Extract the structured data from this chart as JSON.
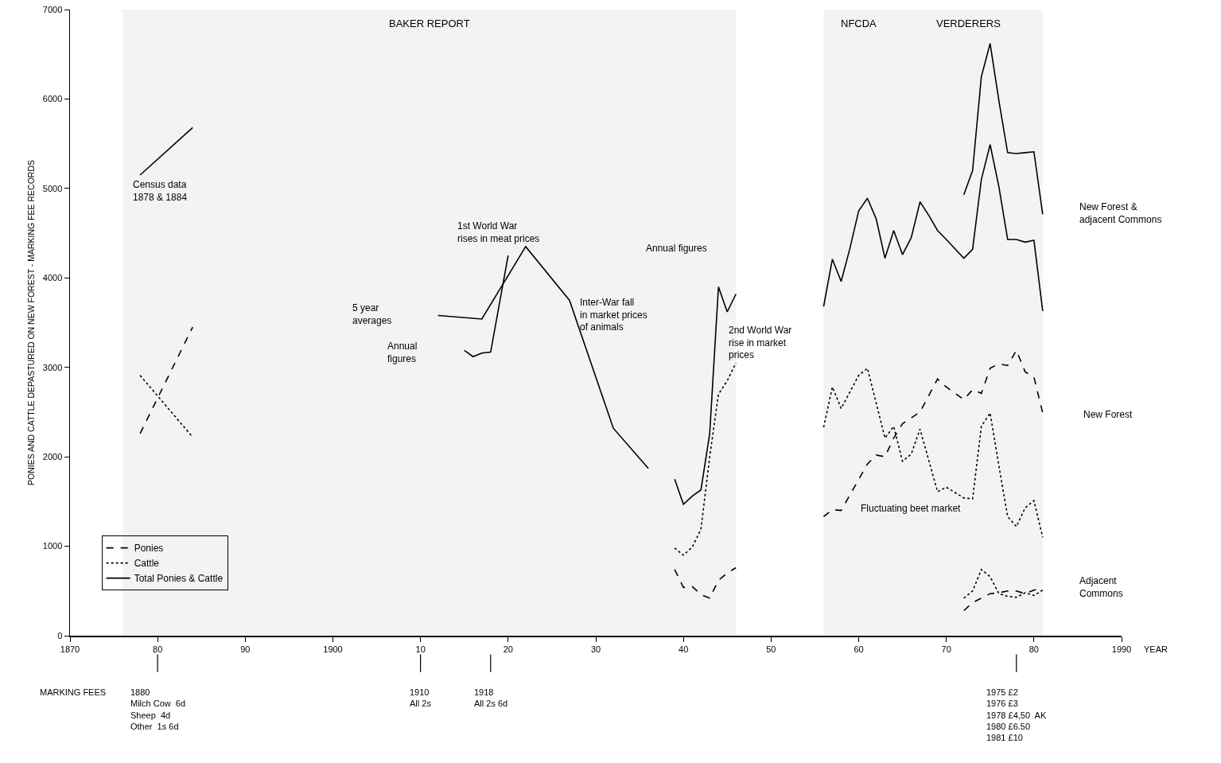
{
  "chart_data": {
    "type": "line",
    "ylabel": "PONIES AND CATTLE DEPASTURED ON NEW FOREST - MARKING FEE RECORDS",
    "xlabel": "YEAR",
    "xlim": [
      1870,
      1990
    ],
    "xticks": [
      1870,
      {
        "value": 1880,
        "label": "80"
      },
      {
        "value": 1890,
        "label": "90"
      },
      1900,
      {
        "value": 1910,
        "label": "10"
      },
      {
        "value": 1920,
        "label": "20"
      },
      {
        "value": 1930,
        "label": "30"
      },
      {
        "value": 1940,
        "label": "40"
      },
      {
        "value": 1950,
        "label": "50"
      },
      {
        "value": 1960,
        "label": "60"
      },
      {
        "value": 1970,
        "label": "70"
      },
      {
        "value": 1980,
        "label": "80"
      },
      1990
    ],
    "ylim": [
      0,
      7000
    ],
    "yticks": [
      0,
      1000,
      2000,
      3000,
      4000,
      5000,
      6000,
      7000
    ],
    "grid": false,
    "legend": "bottom left",
    "marker": "none",
    "series": [
      {
        "name": "Ponies",
        "color": "#000000",
        "line_style": "dashed",
        "x": [
          1878,
          1884,
          1890,
          1939,
          1940,
          1941,
          1942,
          1943,
          1944,
          1945,
          1946,
          1950,
          1956,
          1957,
          1958,
          1961,
          1962,
          1963,
          1964,
          1965,
          1967,
          1969,
          1970,
          1972,
          1973,
          1974,
          1975,
          1976,
          1977,
          1978,
          1979,
          1980,
          1981
        ],
        "values": [
          2260,
          3450,
          null,
          740,
          540,
          550,
          460,
          420,
          620,
          700,
          760,
          null,
          1330,
          1410,
          1400,
          1920,
          2020,
          2000,
          2210,
          2370,
          2500,
          2870,
          2780,
          2640,
          2750,
          2710,
          2990,
          3040,
          3020,
          3190,
          2950,
          2890,
          2490
        ]
      },
      {
        "name": "Cattle",
        "color": "#000000",
        "line_style": "dotted",
        "x": [
          1878,
          1884,
          1890,
          1939,
          1940,
          1941,
          1942,
          1943,
          1944,
          1945,
          1946,
          1950,
          1956,
          1957,
          1958,
          1960,
          1961,
          1963,
          1964,
          1965,
          1966,
          1967,
          1969,
          1970,
          1972,
          1973,
          1974,
          1975,
          1976,
          1977,
          1978,
          1979,
          1980,
          1981
        ],
        "values": [
          2910,
          2220,
          null,
          980,
          900,
          990,
          1190,
          2000,
          2700,
          2850,
          3050,
          null,
          2330,
          2780,
          2540,
          2910,
          2990,
          2210,
          2340,
          1950,
          2030,
          2310,
          1610,
          1660,
          1540,
          1530,
          2340,
          2490,
          1900,
          1330,
          1220,
          1430,
          1510,
          1100
        ]
      },
      {
        "name": "Total Ponies & Cattle",
        "color": "#000000",
        "line_style": "solid",
        "x": [
          1878,
          1884,
          1890,
          1915,
          1916,
          1917,
          1918,
          1920,
          1930,
          1939,
          1940,
          1941,
          1942,
          1943,
          1944,
          1945,
          1946,
          1950,
          1956,
          1957,
          1958,
          1959,
          1960,
          1961,
          1962,
          1963,
          1964,
          1965,
          1966,
          1967,
          1968,
          1969,
          1970,
          1972,
          1973,
          1974,
          1975,
          1976,
          1977,
          1978,
          1979,
          1980,
          1981
        ],
        "values": [
          5150,
          5680,
          null,
          3190,
          3120,
          3160,
          3170,
          4250,
          null,
          1750,
          1470,
          1560,
          1630,
          2260,
          3900,
          3620,
          3820,
          null,
          3680,
          4210,
          3960,
          4330,
          4750,
          4890,
          4660,
          4220,
          4530,
          4260,
          4450,
          4850,
          4700,
          4530,
          4430,
          4220,
          4320,
          5100,
          5490,
          5020,
          4430,
          4430,
          4400,
          4420,
          3630
        ]
      },
      {
        "color": "#000000",
        "line_style": "solid",
        "x": [
          1912,
          1917,
          1922,
          1927,
          1932,
          1936
        ],
        "values": [
          3580,
          3540,
          4350,
          3750,
          2320,
          1870
        ]
      },
      {
        "color": "#000000",
        "line_style": "solid",
        "x": [
          1972,
          1973,
          1974,
          1975,
          1976,
          1977,
          1978,
          1979,
          1980,
          1981
        ],
        "values": [
          4930,
          5200,
          6250,
          6620,
          5980,
          5400,
          5390,
          5400,
          5410,
          4710
        ]
      },
      {
        "color": "#000000",
        "line_style": "dashed",
        "x": [
          1972,
          1973,
          1974,
          1975,
          1976,
          1977,
          1978,
          1979,
          1980,
          1981
        ],
        "values": [
          280,
          370,
          420,
          470,
          480,
          500,
          500,
          470,
          510,
          540
        ]
      },
      {
        "color": "#000000",
        "line_style": "dotted",
        "x": [
          1972,
          1973,
          1974,
          1975,
          1976,
          1977,
          1978,
          1979,
          1980,
          1981
        ],
        "values": [
          420,
          500,
          740,
          660,
          470,
          440,
          430,
          480,
          450,
          510
        ]
      }
    ],
    "bands": [
      {
        "axis": "x",
        "from": 1876,
        "to": 1946,
        "label": "BAKER REPORT"
      },
      {
        "axis": "x",
        "from": 1956,
        "to": 1964,
        "label": "NFCDA"
      },
      {
        "axis": "x",
        "from": 1964,
        "to": 1981,
        "label": "VERDERERS"
      }
    ],
    "annotations": [
      "Census data\n1878 & 1884",
      "1st World War\nrises in meat prices",
      "5 year\naverages",
      "Annual\nfigures",
      "Inter-War fall\nin market prices\nof animals",
      "Annual figures",
      "2nd World War\nrise in market\nprices",
      "New Forest &\nadjacent Commons",
      "New Forest",
      "Fluctuating beet market",
      "Adjacent\nCommons",
      "MARKING FEES",
      "1880\nMilch Cow  6d\nSheep  4d\nOther  1s 6d",
      "1910\nAll 2s",
      "1918\nAll 2s 6d",
      "1975 £2\n1976 £3\n1978 £4,50  AK\n1980 £6.50\n1981 £10"
    ]
  }
}
